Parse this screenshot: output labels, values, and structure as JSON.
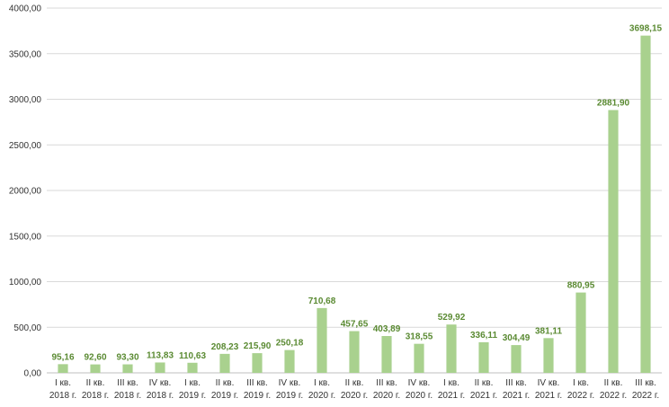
{
  "chart_data": {
    "type": "bar",
    "title": "",
    "xlabel": "",
    "ylabel": "",
    "ylim": [
      0,
      4000
    ],
    "yticks": [
      "0,00",
      "500,00",
      "1000,00",
      "1500,00",
      "2000,00",
      "2500,00",
      "3000,00",
      "3500,00",
      "4000,00"
    ],
    "grid": true,
    "legend": "none",
    "colors": {
      "bar": "#a9d18e",
      "label": "#5a8a32",
      "grid": "#d9d9d9",
      "axis": "#bfbfbf"
    },
    "categories": [
      [
        "I кв.",
        "2018 г."
      ],
      [
        "II кв.",
        "2018 г."
      ],
      [
        "III кв.",
        "2018 г."
      ],
      [
        "IV кв.",
        "2018 г."
      ],
      [
        "I кв.",
        "2019 г."
      ],
      [
        "II кв.",
        "2019 г."
      ],
      [
        "III кв.",
        "2019 г."
      ],
      [
        "IV кв.",
        "2019 г."
      ],
      [
        "I кв.",
        "2020 г."
      ],
      [
        "II кв.",
        "2020 г."
      ],
      [
        "III кв.",
        "2020 г."
      ],
      [
        "IV кв.",
        "2020 г."
      ],
      [
        "I кв.",
        "2021 г."
      ],
      [
        "II кв.",
        "2021 г."
      ],
      [
        "III кв.",
        "2021 г."
      ],
      [
        "IV кв.",
        "2021 г."
      ],
      [
        "I кв.",
        "2022 г."
      ],
      [
        "II кв.",
        "2022 г."
      ],
      [
        "III кв.",
        "2022 г."
      ]
    ],
    "values": [
      95.16,
      92.6,
      93.3,
      113.83,
      110.63,
      208.23,
      215.9,
      250.18,
      710.68,
      457.65,
      403.89,
      318.55,
      529.92,
      336.11,
      304.49,
      381.11,
      880.95,
      2881.9,
      3698.15
    ],
    "data_labels": [
      "95,16",
      "92,60",
      "93,30",
      "113,83",
      "110,63",
      "208,23",
      "215,90",
      "250,18",
      "710,68",
      "457,65",
      "403,89",
      "318,55",
      "529,92",
      "336,11",
      "304,49",
      "381,11",
      "880,95",
      "2881,90",
      "3698,15"
    ]
  }
}
